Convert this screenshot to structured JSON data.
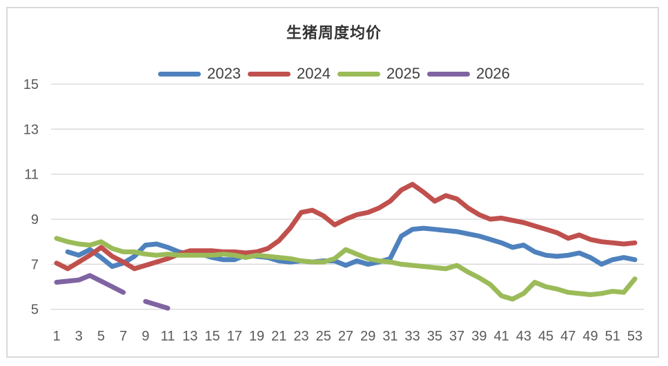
{
  "chart_data": {
    "type": "line",
    "title": "生猪周度均价",
    "xlabel": "",
    "ylabel": "",
    "x": [
      1,
      2,
      3,
      4,
      5,
      6,
      7,
      8,
      9,
      10,
      11,
      12,
      13,
      14,
      15,
      16,
      17,
      18,
      19,
      20,
      21,
      22,
      23,
      24,
      25,
      26,
      27,
      28,
      29,
      30,
      31,
      32,
      33,
      34,
      35,
      36,
      37,
      38,
      39,
      40,
      41,
      42,
      43,
      44,
      45,
      46,
      47,
      48,
      49,
      50,
      51,
      52,
      53
    ],
    "x_tick_labels": [
      1,
      3,
      5,
      7,
      9,
      11,
      13,
      15,
      17,
      19,
      21,
      23,
      25,
      27,
      29,
      31,
      33,
      35,
      37,
      39,
      41,
      43,
      45,
      47,
      49,
      51,
      53
    ],
    "yticks": [
      5,
      7,
      9,
      11,
      13,
      15
    ],
    "ylim": [
      5,
      15
    ],
    "grid": "horizontal",
    "legend_position": "top",
    "gridline_color": "#d9d9d9",
    "tick_color": "#595959",
    "series": [
      {
        "name": "2023",
        "color": "#4E81BD",
        "values": [
          null,
          7.55,
          7.4,
          7.65,
          7.3,
          6.9,
          7.05,
          7.35,
          7.85,
          7.9,
          7.75,
          7.55,
          7.45,
          7.45,
          7.3,
          7.2,
          7.2,
          7.4,
          7.35,
          7.3,
          7.15,
          7.1,
          7.15,
          7.1,
          7.15,
          7.15,
          6.95,
          7.15,
          7.0,
          7.1,
          7.25,
          8.25,
          8.55,
          8.6,
          8.55,
          8.5,
          8.45,
          8.35,
          8.25,
          8.1,
          7.95,
          7.75,
          7.85,
          7.55,
          7.4,
          7.35,
          7.4,
          7.5,
          7.3,
          7.0,
          7.2,
          7.3,
          7.2
        ]
      },
      {
        "name": "2024",
        "color": "#C0504D",
        "values": [
          7.05,
          6.8,
          7.1,
          7.4,
          7.75,
          7.35,
          7.1,
          6.8,
          6.95,
          7.1,
          7.25,
          7.45,
          7.6,
          7.6,
          7.6,
          7.55,
          7.55,
          7.5,
          7.55,
          7.7,
          8.05,
          8.6,
          9.3,
          9.4,
          9.15,
          8.75,
          9.0,
          9.2,
          9.3,
          9.5,
          9.8,
          10.3,
          10.55,
          10.2,
          9.8,
          10.05,
          9.9,
          9.5,
          9.2,
          9.0,
          9.05,
          8.95,
          8.85,
          8.7,
          8.55,
          8.4,
          8.15,
          8.3,
          8.1,
          8.0,
          7.95,
          7.9,
          7.95
        ]
      },
      {
        "name": "2025",
        "color": "#9BBB59",
        "values": [
          8.15,
          8.0,
          7.9,
          7.85,
          8.0,
          7.7,
          7.55,
          7.55,
          7.45,
          7.4,
          7.45,
          7.4,
          7.4,
          7.4,
          7.4,
          7.45,
          7.4,
          7.3,
          7.4,
          7.35,
          7.3,
          7.25,
          7.15,
          7.1,
          7.1,
          7.25,
          7.65,
          7.45,
          7.25,
          7.15,
          7.1,
          7.0,
          6.95,
          6.9,
          6.85,
          6.8,
          6.95,
          6.65,
          6.4,
          6.1,
          5.6,
          5.45,
          5.7,
          6.2,
          6.0,
          5.9,
          5.75,
          5.7,
          5.65,
          5.7,
          5.8,
          5.75,
          6.35
        ]
      },
      {
        "name": "2026",
        "color": "#8064A2",
        "values": [
          6.2,
          6.25,
          6.3,
          6.5,
          6.25,
          6.0,
          5.75,
          null,
          5.35,
          5.2,
          5.05,
          null,
          null,
          null,
          null,
          null,
          null,
          null,
          null,
          null,
          null,
          null,
          null,
          null,
          null,
          null,
          null,
          null,
          null,
          null,
          null,
          null,
          null,
          null,
          null,
          null,
          null,
          null,
          null,
          null,
          null,
          null,
          null,
          null,
          null,
          null,
          null,
          null,
          null,
          null,
          null,
          null,
          null
        ]
      }
    ]
  }
}
